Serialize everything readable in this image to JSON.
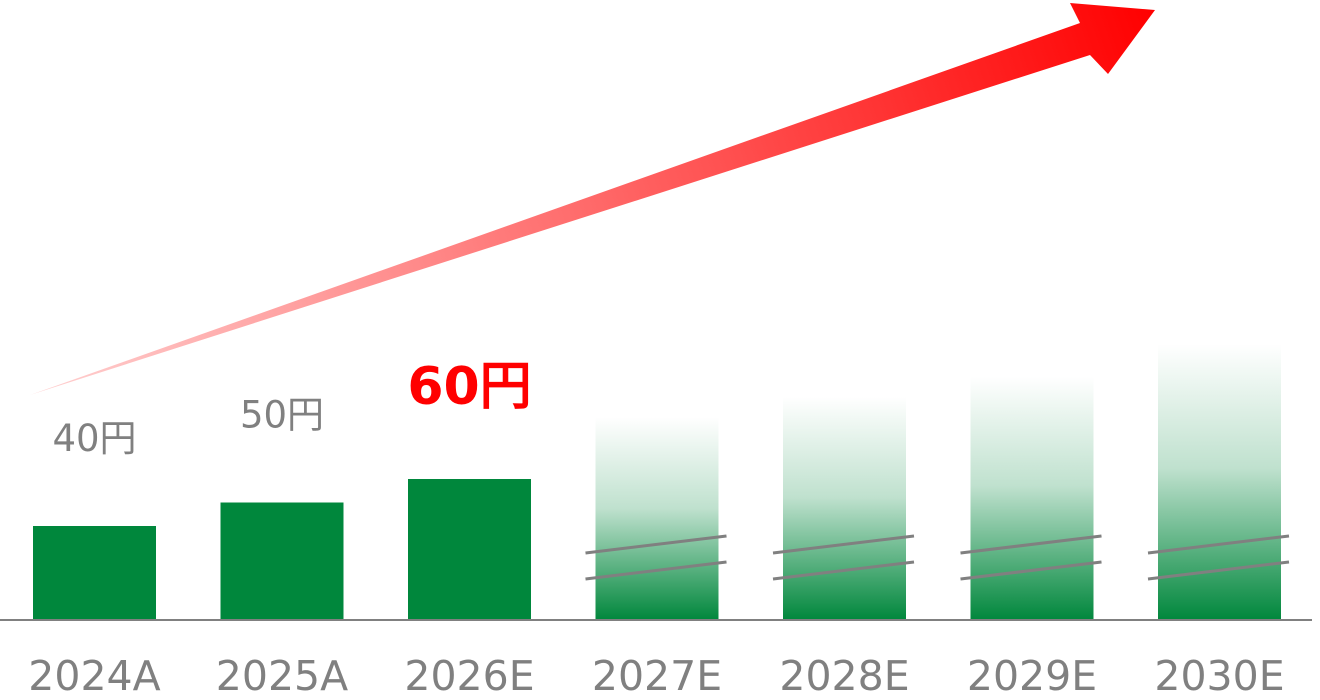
{
  "chart_data": {
    "type": "bar",
    "categories": [
      "2024A",
      "2025A",
      "2026E",
      "2027E",
      "2028E",
      "2029E",
      "2030E"
    ],
    "values": [
      40,
      50,
      60,
      null,
      null,
      null,
      null
    ],
    "value_labels": [
      "40円",
      "50円",
      "60円",
      "",
      "",
      "",
      ""
    ],
    "highlight_index": 2,
    "forecast_from_index": 3,
    "forecast_fade_levels": [
      0.5,
      0.55,
      0.6,
      0.68
    ],
    "axis_break_marks": true,
    "growth_arrow": true,
    "title": "",
    "xlabel": "",
    "ylabel": "",
    "grid": false,
    "legend": "none"
  },
  "colors": {
    "bar": "#00873C",
    "highlight_text": "#FF0000",
    "label_text": "#808080",
    "axis": "#808080",
    "arrow_start": "#FFD2D2",
    "arrow_end": "#FF0000"
  }
}
